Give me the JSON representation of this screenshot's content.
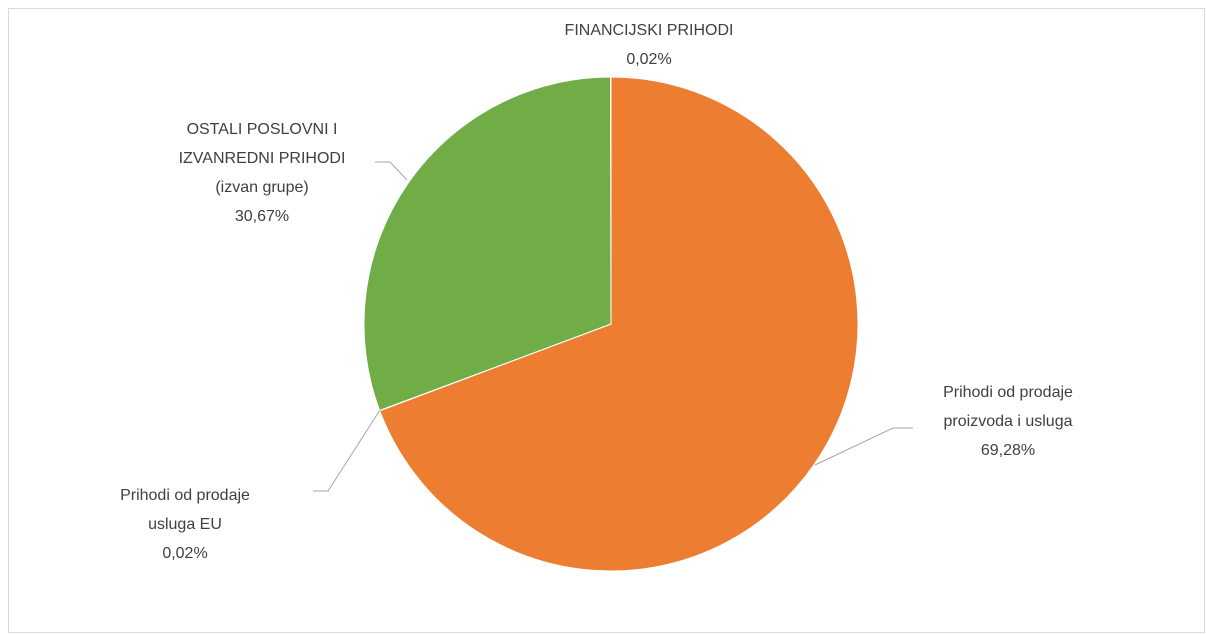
{
  "chart_data": {
    "type": "pie",
    "categories": [
      "Prihodi od prodaje proizvoda i usluga",
      "Prihodi od prodaje usluga EU",
      "OSTALI POSLOVNI I IZVANREDNI PRIHODI (izvan grupe)",
      "FINANCIJSKI PRIHODI"
    ],
    "values": [
      69.28,
      0.02,
      30.67,
      0.02
    ],
    "value_labels": [
      "69,28%",
      "0,02%",
      "30,67%",
      "0,02%"
    ],
    "colors": [
      "#ED7D31",
      "#4472C4",
      "#70AD47",
      "#A5A5A5"
    ]
  }
}
